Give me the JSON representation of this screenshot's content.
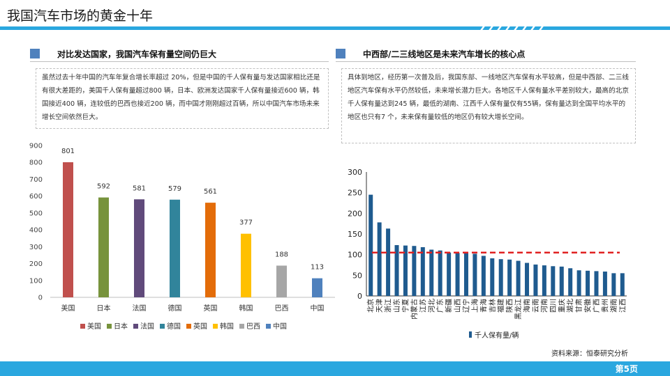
{
  "page_title": "我国汽车市场的黄金十年",
  "left": {
    "heading": "对比发达国家，我国汽车保有量空间仍巨大",
    "body": "虽然过去十年中国的汽车年复合增长率超过 20%，但是中国的千人保有量与发达国家相比还是有很大差距的，美国千人保有量超过800 辆，日本、欧洲发达国家千人保有量接近600 辆，韩国接近400 辆，连较低的巴西也接近200 辆，而中国才刚刚超过百辆，所以中国汽车市场未来增长空间依然巨大。"
  },
  "right": {
    "heading": "中西部/二三线地区是未来汽车增长的核心点",
    "body": "具体到地区，经历第一次普及后，我国东部、一线地区汽车保有水平较高，但是中西部、二三线地区汽车保有水平仍然较低，未来增长潜力巨大。各地区千人保有量水平差别较大，最高的北京千人保有量达到245 辆，最低的湖南、江西千人保有量仅有55辆，保有量达到全国平均水平的地区也只有7 个，未来保有量较低的地区仍有较大增长空间。"
  },
  "source": "资料来源：恒泰研究分析",
  "page_number": "第5页",
  "chart_data": [
    {
      "type": "bar",
      "categories": [
        "美国",
        "日本",
        "法国",
        "德国",
        "英国",
        "韩国",
        "巴西",
        "中国"
      ],
      "values": [
        801,
        592,
        581,
        579,
        561,
        377,
        188,
        113
      ],
      "colors": [
        "#c0504d",
        "#77933c",
        "#604a7b",
        "#31849b",
        "#e36c09",
        "#ffc000",
        "#a6a6a6",
        "#4f81bd"
      ],
      "yticks": [
        "0",
        "100",
        "200",
        "300",
        "400",
        "500",
        "600",
        "700",
        "800",
        "900"
      ],
      "ylim": [
        0,
        900
      ],
      "data_labels": true,
      "legend": "bottom"
    },
    {
      "type": "bar",
      "categories": [
        "北京",
        "天津",
        "浙江",
        "山东",
        "宁夏",
        "内蒙古",
        "江苏",
        "河北",
        "广东",
        "新疆",
        "山西",
        "辽宁",
        "上海",
        "青海",
        "吉林",
        "福建",
        "陕西",
        "黑龙江",
        "海南",
        "云南",
        "河南",
        "四川",
        "重庆",
        "湖北",
        "甘肃",
        "安徽",
        "广西",
        "贵州",
        "湖南",
        "江西"
      ],
      "values": [
        245,
        178,
        163,
        123,
        122,
        121,
        118,
        112,
        110,
        105,
        104,
        103,
        102,
        97,
        91,
        89,
        88,
        85,
        80,
        76,
        74,
        72,
        71,
        67,
        62,
        61,
        60,
        59,
        55,
        55
      ],
      "series": [
        {
          "name": "千人保有量/辆",
          "color": "#1f5b8f"
        }
      ],
      "reference_line": {
        "value": 105,
        "style": "red dashed"
      },
      "yticks": [
        "0",
        "50",
        "100",
        "150",
        "200",
        "250",
        "300"
      ],
      "ylim": [
        0,
        300
      ],
      "legend": "bottom"
    }
  ]
}
